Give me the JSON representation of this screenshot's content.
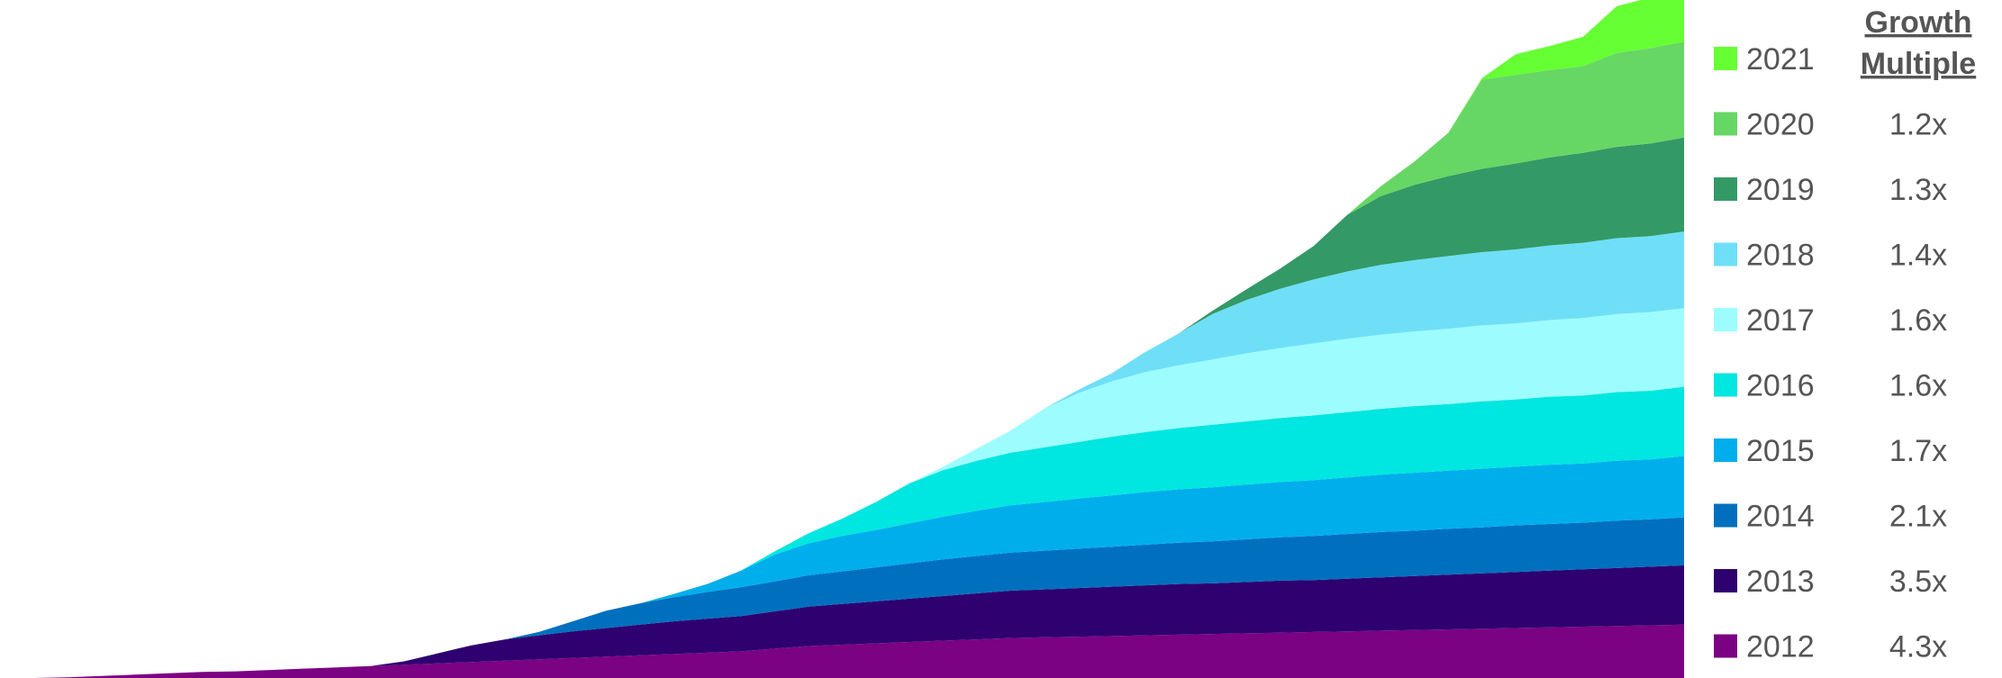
{
  "chart_data": {
    "type": "area",
    "stacked": true,
    "title": "",
    "xlabel": "",
    "ylabel": "",
    "x_axis_visible": false,
    "y_axis_visible": false,
    "grid": false,
    "legend_placement": "right",
    "x": [
      0,
      1,
      2,
      3,
      4,
      5,
      6,
      7,
      8,
      9,
      10,
      11,
      12,
      13,
      14,
      15,
      16,
      17,
      18,
      19,
      20,
      21,
      22,
      23,
      24,
      25,
      26,
      27,
      28,
      29,
      30,
      31,
      32,
      33,
      34,
      35,
      36,
      37,
      38,
      39,
      40,
      41,
      42,
      43,
      44,
      45,
      46,
      47,
      48,
      49,
      50
    ],
    "series": [
      {
        "name": "2012",
        "color": "#7B0282",
        "start": 0,
        "values": [
          0,
          0,
          0.1,
          0.3,
          0.5,
          0.7,
          0.9,
          1,
          1.2,
          1.4,
          1.6,
          1.8,
          2,
          2.2,
          2.4,
          2.6,
          2.8,
          3,
          3.2,
          3.4,
          3.6,
          3.8,
          4,
          4.4,
          4.8,
          5,
          5.2,
          5.4,
          5.6,
          5.8,
          6,
          6.1,
          6.2,
          6.3,
          6.4,
          6.5,
          6.6,
          6.7,
          6.8,
          6.9,
          7,
          7.1,
          7.2,
          7.3,
          7.4,
          7.5,
          7.6,
          7.7,
          7.8,
          7.9,
          8
        ]
      },
      {
        "name": "2013",
        "color": "#2E0070",
        "start": 11,
        "values": [
          0,
          0,
          0,
          0,
          0,
          0,
          0,
          0,
          0,
          0,
          0,
          0,
          0.5,
          1.5,
          2.5,
          3.2,
          3.6,
          4,
          4.3,
          4.6,
          4.9,
          5.1,
          5.3,
          5.6,
          5.9,
          6.1,
          6.3,
          6.5,
          6.7,
          6.9,
          7.1,
          7.2,
          7.3,
          7.4,
          7.5,
          7.6,
          7.6,
          7.7,
          7.8,
          7.8,
          7.9,
          8,
          8.1,
          8.2,
          8.3,
          8.4,
          8.5,
          8.6,
          8.7,
          8.8,
          8.9
        ]
      },
      {
        "name": "2014",
        "color": "#0070BE",
        "start": 15,
        "values": [
          0,
          0,
          0,
          0,
          0,
          0,
          0,
          0,
          0,
          0,
          0,
          0,
          0,
          0,
          0,
          0,
          0.5,
          1.5,
          2.6,
          3.2,
          3.6,
          4,
          4.3,
          4.5,
          4.7,
          4.9,
          5.1,
          5.3,
          5.5,
          5.6,
          5.7,
          5.8,
          5.9,
          6,
          6.1,
          6.2,
          6.3,
          6.4,
          6.5,
          6.6,
          6.7,
          6.8,
          6.8,
          6.9,
          6.9,
          7,
          7,
          7,
          7.1,
          7.1,
          7.2
        ]
      },
      {
        "name": "2015",
        "color": "#00AEEC",
        "start": 19,
        "values": [
          0,
          0,
          0,
          0,
          0,
          0,
          0,
          0,
          0,
          0,
          0,
          0,
          0,
          0,
          0,
          0,
          0,
          0,
          0,
          0,
          0.5,
          1.2,
          2.5,
          4,
          4.8,
          5.3,
          5.6,
          6,
          6.4,
          6.8,
          7.1,
          7.3,
          7.5,
          7.7,
          7.9,
          8,
          8.1,
          8.2,
          8.3,
          8.4,
          8.5,
          8.6,
          8.7,
          8.7,
          8.8,
          8.8,
          8.9,
          8.9,
          9,
          9,
          9.2
        ]
      },
      {
        "name": "2016",
        "color": "#00E6E0",
        "start": 22,
        "values": [
          0,
          0,
          0,
          0,
          0,
          0,
          0,
          0,
          0,
          0,
          0,
          0,
          0,
          0,
          0,
          0,
          0,
          0,
          0,
          0,
          0,
          0,
          0,
          0.5,
          1.5,
          2.6,
          4.2,
          6,
          7,
          7.5,
          7.9,
          8.2,
          8.5,
          8.8,
          9,
          9.2,
          9.4,
          9.5,
          9.6,
          9.7,
          9.8,
          9.9,
          10,
          10,
          10.1,
          10.1,
          10.2,
          10.2,
          10.3,
          10.3,
          10.4
        ]
      },
      {
        "name": "2017",
        "color": "#9DFDFE",
        "start": 26,
        "values": [
          0,
          0,
          0,
          0,
          0,
          0,
          0,
          0,
          0,
          0,
          0,
          0,
          0,
          0,
          0,
          0,
          0,
          0,
          0,
          0,
          0,
          0,
          0,
          0,
          0,
          0,
          0,
          0,
          0.5,
          1.8,
          3.3,
          5.8,
          7.3,
          8.3,
          9,
          9.4,
          9.8,
          10.2,
          10.5,
          10.8,
          11,
          11.1,
          11.2,
          11.3,
          11.4,
          11.4,
          11.5,
          11.6,
          11.7,
          11.8,
          11.8
        ]
      },
      {
        "name": "2018",
        "color": "#6FDFF8",
        "start": 30,
        "values": [
          0,
          0,
          0,
          0,
          0,
          0,
          0,
          0,
          0,
          0,
          0,
          0,
          0,
          0,
          0,
          0,
          0,
          0,
          0,
          0,
          0,
          0,
          0,
          0,
          0,
          0,
          0,
          0,
          0,
          0,
          0,
          0,
          0.5,
          1.2,
          3,
          4.8,
          6.8,
          8,
          8.9,
          9.6,
          10.1,
          10.5,
          10.7,
          10.9,
          11,
          11.1,
          11.2,
          11.3,
          11.4,
          11.4,
          11.5
        ]
      },
      {
        "name": "2019",
        "color": "#339966",
        "start": 34,
        "values": [
          0,
          0,
          0,
          0,
          0,
          0,
          0,
          0,
          0,
          0,
          0,
          0,
          0,
          0,
          0,
          0,
          0,
          0,
          0,
          0,
          0,
          0,
          0,
          0,
          0,
          0,
          0,
          0,
          0,
          0,
          0,
          0,
          0,
          0,
          0,
          0,
          0.5,
          1.6,
          3,
          5,
          8.5,
          10.3,
          11.3,
          12,
          12.5,
          12.9,
          13.2,
          13.5,
          13.7,
          13.9,
          14.1
        ]
      },
      {
        "name": "2020",
        "color": "#66D764",
        "start": 39,
        "values": [
          0,
          0,
          0,
          0,
          0,
          0,
          0,
          0,
          0,
          0,
          0,
          0,
          0,
          0,
          0,
          0,
          0,
          0,
          0,
          0,
          0,
          0,
          0,
          0,
          0,
          0,
          0,
          0,
          0,
          0,
          0,
          0,
          0,
          0,
          0,
          0,
          0,
          0,
          0,
          0,
          0,
          1.5,
          3.5,
          6.5,
          13.4,
          13.3,
          13.1,
          13.0,
          14.1,
          14.3,
          14.4
        ]
      },
      {
        "name": "2021",
        "color": "#66FF33",
        "start": 43,
        "values": [
          0,
          0,
          0,
          0,
          0,
          0,
          0,
          0,
          0,
          0,
          0,
          0,
          0,
          0,
          0,
          0,
          0,
          0,
          0,
          0,
          0,
          0,
          0,
          0,
          0,
          0,
          0,
          0,
          0,
          0,
          0,
          0,
          0,
          0,
          0,
          0,
          0,
          0,
          0,
          0,
          0,
          0,
          0,
          0,
          0.2,
          3.1,
          3.6,
          4.4,
          7.0,
          7.6,
          9.2
        ]
      }
    ],
    "legend_header": "Growth Multiple",
    "growth_multiples": [
      {
        "year": "2021",
        "multiple": ""
      },
      {
        "year": "2020",
        "multiple": "1.2x"
      },
      {
        "year": "2019",
        "multiple": "1.3x"
      },
      {
        "year": "2018",
        "multiple": "1.4x"
      },
      {
        "year": "2017",
        "multiple": "1.6x"
      },
      {
        "year": "2016",
        "multiple": "1.6x"
      },
      {
        "year": "2015",
        "multiple": "1.7x"
      },
      {
        "year": "2014",
        "multiple": "2.1x"
      },
      {
        "year": "2013",
        "multiple": "3.5x"
      },
      {
        "year": "2012",
        "multiple": "4.3x"
      }
    ]
  }
}
